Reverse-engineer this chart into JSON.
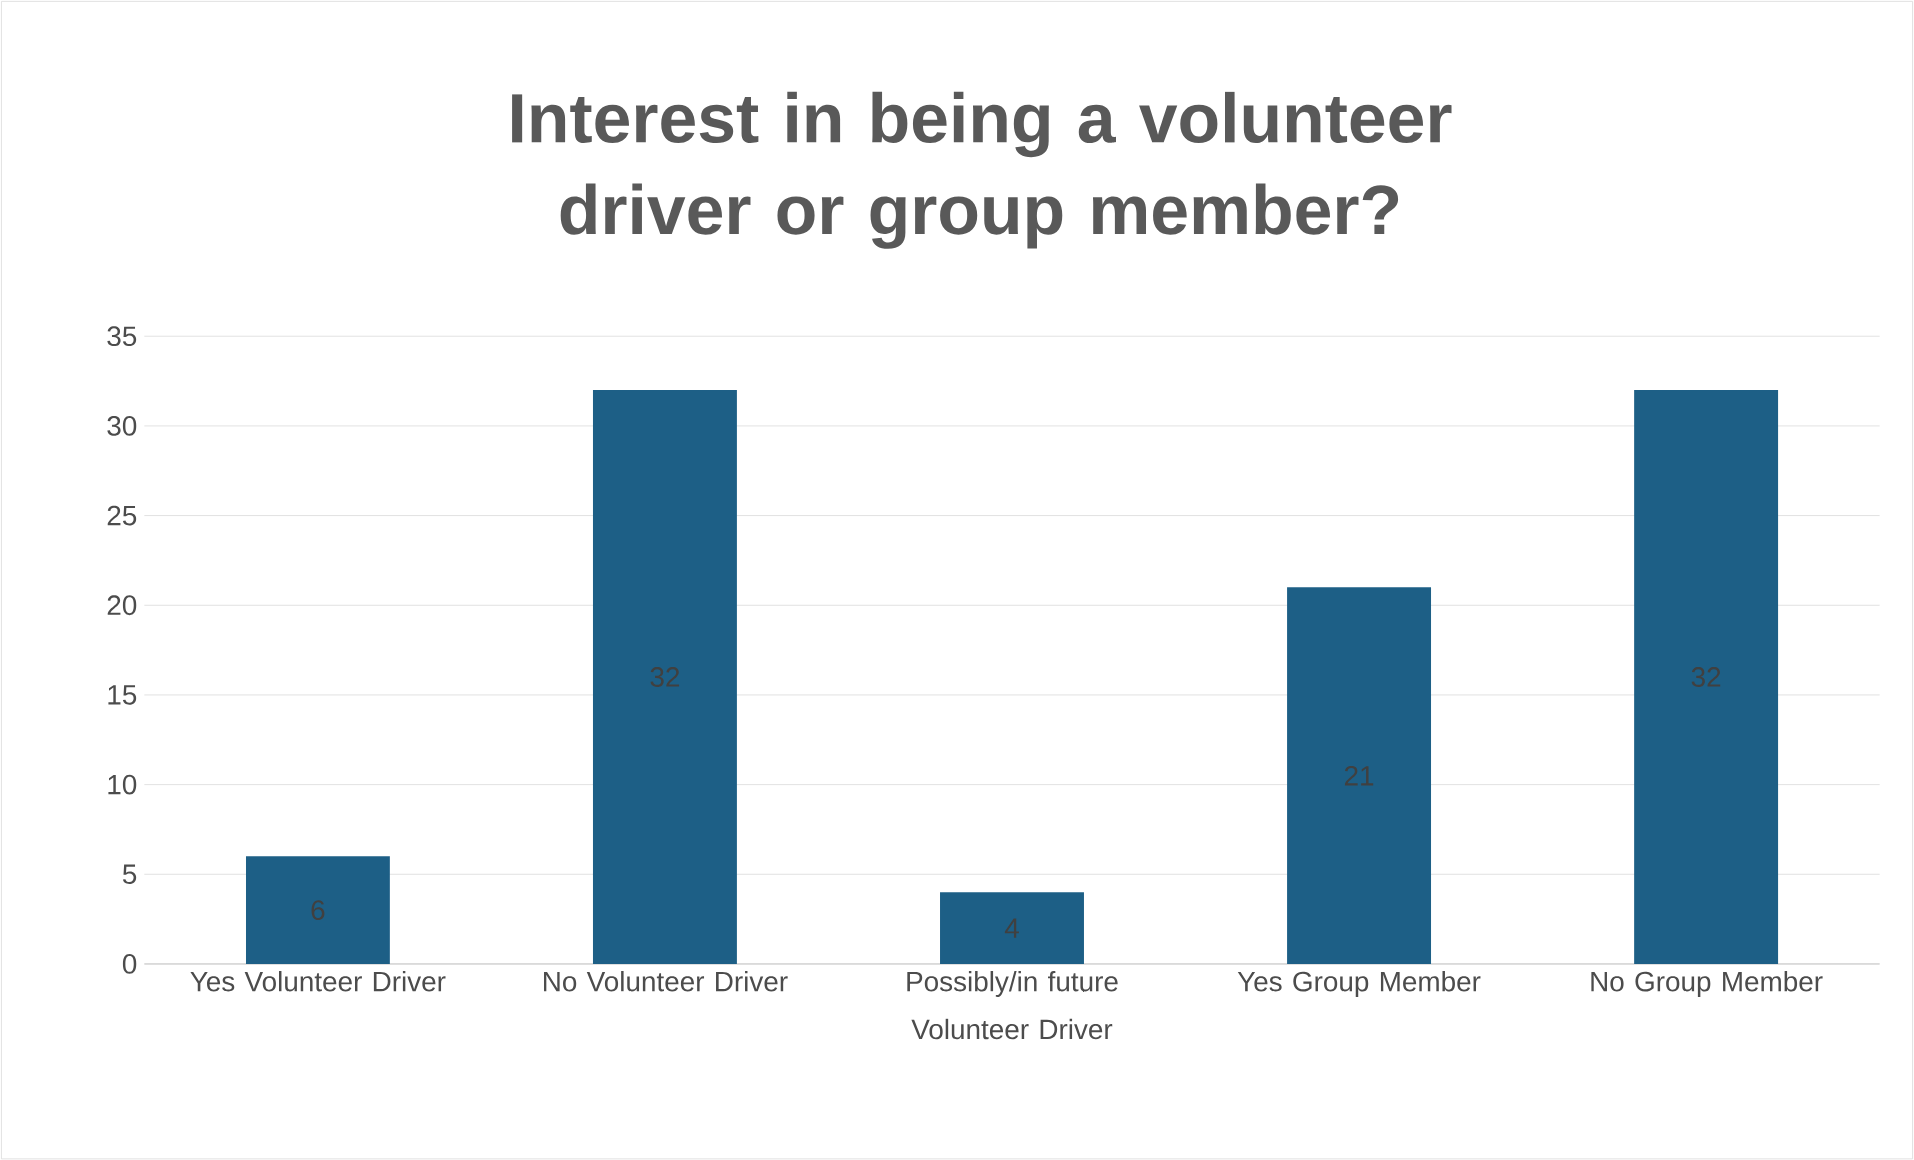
{
  "chart_data": {
    "type": "bar",
    "title": "Interest in being a volunteer driver or group member?",
    "categories": [
      "Yes Volunteer Driver",
      "No Volunteer Driver",
      "Possibly/in future Volunteer Driver",
      "Yes Group Member",
      "No Group Member"
    ],
    "values": [
      6,
      32,
      4,
      21,
      32
    ],
    "color": "#1d5f86",
    "data_labels": true,
    "grid": "y",
    "ylim": [
      0,
      35
    ],
    "yticks": [
      0,
      5,
      10,
      15,
      20,
      25,
      30,
      35
    ]
  }
}
